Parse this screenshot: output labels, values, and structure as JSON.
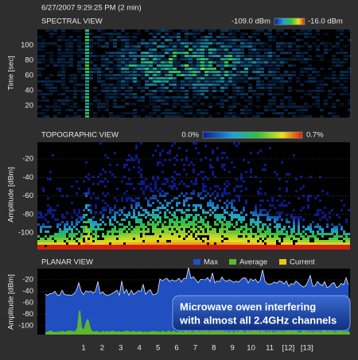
{
  "header": {
    "timestamp": "6/27/2007 9:29:25 PM (2 min)"
  },
  "spectral": {
    "title": "SPECTRAL VIEW",
    "scale_min": "-109.0 dBm",
    "scale_max": "-16.0 dBm",
    "y_label": "Time [sec]",
    "yticks": [
      100,
      80,
      60,
      40,
      20
    ]
  },
  "topographic": {
    "title": "TOPOGRAPHIC VIEW",
    "scale_min": "0.0%",
    "scale_max": "0.7%",
    "y_label": "Amplitude [dBm]",
    "yticks": [
      -20,
      -40,
      -60,
      -80,
      -100
    ]
  },
  "planar": {
    "title": "PLANAR VIEW",
    "legend": [
      "Max",
      "Average",
      "Current"
    ],
    "y_label": "Amplitude [dBm]",
    "yticks": [
      -20,
      -40,
      -60,
      -80,
      -100
    ]
  },
  "x_labels": [
    "1",
    "2",
    "3",
    "4",
    "5",
    "6",
    "7",
    "8",
    "9",
    "10",
    "11",
    "[12]",
    "[13]"
  ],
  "annotation": {
    "lines": [
      "Microwave owen interfering",
      "with almost all 2.4GHz channels"
    ]
  }
}
